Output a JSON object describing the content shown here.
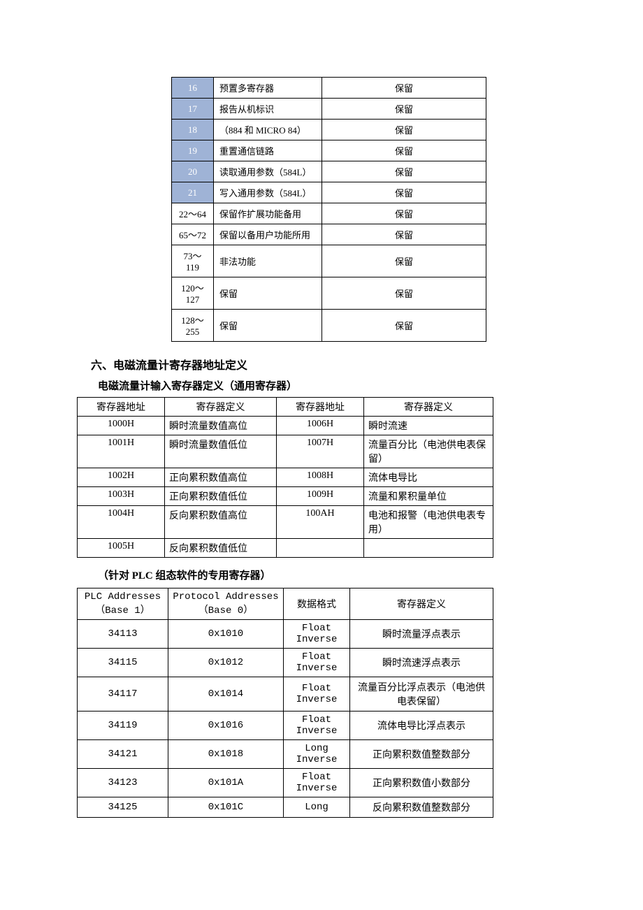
{
  "table1": {
    "rows": [
      {
        "code": "16",
        "shaded": true,
        "desc": "预置多寄存器",
        "reserved": "保留"
      },
      {
        "code": "17",
        "shaded": true,
        "desc": "报告从机标识",
        "reserved": "保留"
      },
      {
        "code": "18",
        "shaded": true,
        "desc": "（884 和 MICRO 84）",
        "reserved": "保留"
      },
      {
        "code": "19",
        "shaded": true,
        "desc": "重置通信链路",
        "reserved": "保留"
      },
      {
        "code": "20",
        "shaded": true,
        "desc": "读取通用参数（584L）",
        "reserved": "保留"
      },
      {
        "code": "21",
        "shaded": true,
        "desc": "写入通用参数（584L）",
        "reserved": "保留"
      },
      {
        "code": "22～64",
        "shaded": false,
        "desc": "保留作扩展功能备用",
        "reserved": "保留"
      },
      {
        "code": "65～72",
        "shaded": false,
        "desc": "保留以备用户功能所用",
        "reserved": "保留"
      },
      {
        "code": "73～119",
        "shaded": false,
        "desc": "非法功能",
        "reserved": "保留"
      },
      {
        "code": "120～127",
        "shaded": false,
        "desc": "保留",
        "reserved": "保留"
      },
      {
        "code": "128～255",
        "shaded": false,
        "desc": "保留",
        "reserved": "保留"
      }
    ]
  },
  "section_heading": "六、电磁流量计寄存器地址定义",
  "sub_heading": "电磁流量计输入寄存器定义（通用寄存器）",
  "table2": {
    "headers": {
      "addr1": "寄存器地址",
      "def1": "寄存器定义",
      "addr2": "寄存器地址",
      "def2": "寄存器定义"
    },
    "rows": [
      {
        "a1": "1000H",
        "d1": "瞬时流量数值高位",
        "a2": "1006H",
        "d2": "瞬时流速"
      },
      {
        "a1": "1001H",
        "d1": "瞬时流量数值低位",
        "a2": "1007H",
        "d2": "流量百分比（电池供电表保留）"
      },
      {
        "a1": "1002H",
        "d1": "正向累积数值高位",
        "a2": "1008H",
        "d2": "流体电导比"
      },
      {
        "a1": "1003H",
        "d1": "正向累积数值低位",
        "a2": "1009H",
        "d2": "流量和累积量单位"
      },
      {
        "a1": "1004H",
        "d1": "反向累积数值高位",
        "a2": "100AH",
        "d2": "电池和报警（电池供电表专用）"
      },
      {
        "a1": "1005H",
        "d1": "反向累积数值低位",
        "a2": "",
        "d2": ""
      }
    ]
  },
  "plc_note": "（针对 PLC 组态软件的专用寄存器）",
  "table3": {
    "headers": {
      "plc_l1": "PLC Addresses",
      "plc_l2": "（Base 1）",
      "proto_l1": "Protocol Addresses",
      "proto_l2": "（Base 0）",
      "fmt": "数据格式",
      "def": "寄存器定义"
    },
    "rows": [
      {
        "plc": "34113",
        "proto": "0x1010",
        "fmt_l1": "Float",
        "fmt_l2": "Inverse",
        "def": "瞬时流量浮点表示"
      },
      {
        "plc": "34115",
        "proto": "0x1012",
        "fmt_l1": "Float",
        "fmt_l2": "Inverse",
        "def": "瞬时流速浮点表示"
      },
      {
        "plc": "34117",
        "proto": "0x1014",
        "fmt_l1": "Float",
        "fmt_l2": "Inverse",
        "def": "流量百分比浮点表示（电池供电表保留）"
      },
      {
        "plc": "34119",
        "proto": "0x1016",
        "fmt_l1": "Float",
        "fmt_l2": "Inverse",
        "def": "流体电导比浮点表示"
      },
      {
        "plc": "34121",
        "proto": "0x1018",
        "fmt_l1": "Long",
        "fmt_l2": "Inverse",
        "def": "正向累积数值整数部分"
      },
      {
        "plc": "34123",
        "proto": "0x101A",
        "fmt_l1": "Float",
        "fmt_l2": "Inverse",
        "def": "正向累积数值小数部分"
      },
      {
        "plc": "34125",
        "proto": "0x101C",
        "fmt_l1": "Long",
        "fmt_l2": "",
        "def": "反向累积数值整数部分"
      }
    ]
  }
}
